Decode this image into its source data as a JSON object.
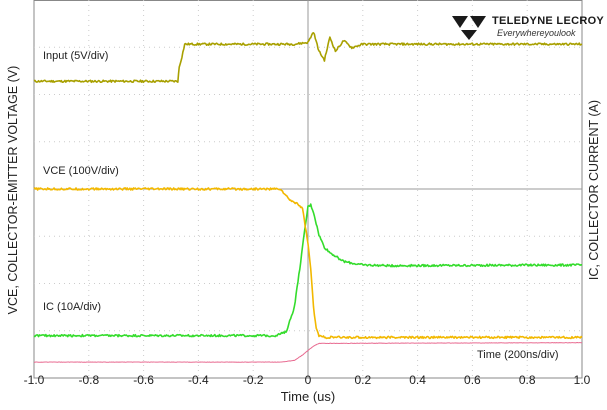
{
  "chart_data": {
    "type": "line",
    "x_axis": {
      "label": "Time (us)",
      "range": [
        -1.0,
        1.0
      ],
      "ticks": [
        "-1.0",
        "-0.8",
        "-0.6",
        "-0.4",
        "-0.2",
        "0",
        "0.2",
        "0.4",
        "0.6",
        "0.8",
        "1.0"
      ]
    },
    "y_axis_left_label": "VCE, COLLECTOR-EMITTER VOLTAGE (V)",
    "y_axis_right_label": "IC, COLLECTOR CURRENT (A)",
    "grid": true,
    "series": [
      {
        "name": "Input (5V/div)",
        "color": "#a8a000",
        "x": [
          -1.0,
          -0.475,
          -0.47,
          -0.46,
          -0.45,
          -0.4,
          -0.05,
          0.0,
          0.02,
          0.04,
          0.06,
          0.08,
          0.1,
          0.13,
          0.16,
          0.2,
          0.3,
          1.0
        ],
        "y": [
          7.7,
          7.7,
          8.1,
          8.4,
          8.75,
          8.75,
          8.75,
          8.8,
          9.1,
          8.55,
          8.3,
          8.95,
          8.55,
          8.85,
          8.65,
          8.75,
          8.75,
          8.75
        ]
      },
      {
        "name": "VCE (100V/div)",
        "color": "#f2b800",
        "x": [
          -1.0,
          -0.1,
          -0.08,
          -0.06,
          -0.04,
          -0.02,
          0.0,
          0.01,
          0.02,
          0.03,
          0.04,
          0.06,
          0.1,
          0.2,
          1.0
        ],
        "y": [
          4.65,
          4.65,
          4.45,
          4.3,
          4.25,
          4.1,
          3.1,
          2.4,
          1.3,
          0.7,
          0.5,
          0.45,
          0.45,
          0.45,
          0.45
        ]
      },
      {
        "name": "IC (10A/div)",
        "color": "#34dc2c",
        "x": [
          -1.0,
          -0.12,
          -0.08,
          -0.05,
          -0.03,
          -0.01,
          0.0,
          0.01,
          0.02,
          0.04,
          0.06,
          0.08,
          0.1,
          0.13,
          0.16,
          0.2,
          0.3,
          1.0
        ],
        "y": [
          0.5,
          0.5,
          0.6,
          1.3,
          2.4,
          3.6,
          4.15,
          4.2,
          4.0,
          3.35,
          3.0,
          2.85,
          2.75,
          2.6,
          2.55,
          2.5,
          2.48,
          2.5
        ]
      },
      {
        "name": "Time (200ns/div)",
        "color": "#e86a90",
        "x": [
          -1.0,
          -0.1,
          -0.05,
          -0.02,
          0.0,
          0.02,
          0.04,
          1.0
        ],
        "y": [
          -0.25,
          -0.25,
          -0.2,
          -0.05,
          0.08,
          0.2,
          0.28,
          0.3
        ]
      }
    ],
    "y_range": [
      -0.7,
      10.0
    ]
  },
  "brand": {
    "name": "TELEDYNE LECROY",
    "tagline": "Everywhereyoulook"
  },
  "colors": {
    "grid": "#cccccc",
    "frame": "#888888",
    "text": "#222222"
  }
}
